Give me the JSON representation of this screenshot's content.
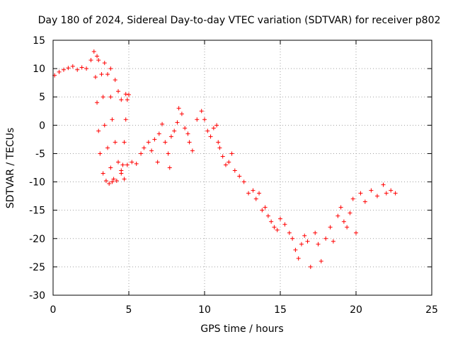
{
  "chart_data": {
    "type": "scatter",
    "title": "Day 180 of 2024, Sidereal Day-to-day VTEC variation (SDTVAR) for receiver p802",
    "xlabel": "GPS time / hours",
    "ylabel": "SDTVAR / TECUs",
    "xlim": [
      0,
      25
    ],
    "ylim": [
      -30,
      15
    ],
    "xticks": [
      0,
      5,
      10,
      15,
      20,
      25
    ],
    "yticks": [
      15,
      10,
      5,
      0,
      -5,
      -10,
      -15,
      -20,
      -25,
      -30
    ],
    "grid": true,
    "marker": "+",
    "series": [
      {
        "name": "SDTVAR",
        "color": "#ff0000",
        "points": [
          [
            0.1,
            8.8
          ],
          [
            0.4,
            9.4
          ],
          [
            0.7,
            9.8
          ],
          [
            1.0,
            10.1
          ],
          [
            1.3,
            10.4
          ],
          [
            1.6,
            9.8
          ],
          [
            1.9,
            10.2
          ],
          [
            2.2,
            10.0
          ],
          [
            2.5,
            11.5
          ],
          [
            2.7,
            13.0
          ],
          [
            2.9,
            12.2
          ],
          [
            2.8,
            8.5
          ],
          [
            2.9,
            4.0
          ],
          [
            3.0,
            -1.0
          ],
          [
            3.1,
            -5.0
          ],
          [
            3.3,
            -8.5
          ],
          [
            3.5,
            -9.8
          ],
          [
            3.7,
            -10.3
          ],
          [
            3.9,
            -10.0
          ],
          [
            3.0,
            11.5
          ],
          [
            3.2,
            9.0
          ],
          [
            3.3,
            5.0
          ],
          [
            3.4,
            0.0
          ],
          [
            3.6,
            -4.0
          ],
          [
            3.8,
            -7.5
          ],
          [
            4.0,
            -9.5
          ],
          [
            4.2,
            -9.8
          ],
          [
            3.4,
            11.0
          ],
          [
            3.6,
            9.0
          ],
          [
            3.8,
            5.0
          ],
          [
            3.9,
            1.0
          ],
          [
            4.1,
            -3.0
          ],
          [
            4.3,
            -6.5
          ],
          [
            4.5,
            -8.5
          ],
          [
            4.7,
            -9.5
          ],
          [
            3.8,
            10.0
          ],
          [
            4.1,
            8.0
          ],
          [
            4.3,
            6.0
          ],
          [
            4.5,
            4.5
          ],
          [
            4.8,
            5.5
          ],
          [
            5.0,
            5.4
          ],
          [
            4.9,
            4.5
          ],
          [
            4.8,
            1.0
          ],
          [
            4.7,
            -3.0
          ],
          [
            4.6,
            -7.0
          ],
          [
            4.5,
            -8.0
          ],
          [
            4.9,
            -7.0
          ],
          [
            5.2,
            -6.5
          ],
          [
            5.5,
            -6.8
          ],
          [
            5.8,
            -5.0
          ],
          [
            6.0,
            -4.0
          ],
          [
            6.3,
            -3.0
          ],
          [
            6.5,
            -4.5
          ],
          [
            6.7,
            -2.5
          ],
          [
            6.9,
            -6.5
          ],
          [
            7.0,
            -1.5
          ],
          [
            7.2,
            0.2
          ],
          [
            7.4,
            -3.0
          ],
          [
            7.6,
            -5.0
          ],
          [
            7.7,
            -7.5
          ],
          [
            7.8,
            -2.0
          ],
          [
            8.0,
            -1.0
          ],
          [
            8.2,
            0.5
          ],
          [
            8.3,
            3.0
          ],
          [
            8.5,
            2.0
          ],
          [
            8.7,
            -0.5
          ],
          [
            8.9,
            -1.5
          ],
          [
            9.0,
            -3.0
          ],
          [
            9.2,
            -4.5
          ],
          [
            9.5,
            1.0
          ],
          [
            9.8,
            2.5
          ],
          [
            10.0,
            1.0
          ],
          [
            10.2,
            -1.0
          ],
          [
            10.4,
            -2.0
          ],
          [
            10.6,
            -0.5
          ],
          [
            10.8,
            0.0
          ],
          [
            10.9,
            -3.0
          ],
          [
            11.0,
            -4.0
          ],
          [
            11.2,
            -5.5
          ],
          [
            11.4,
            -7.0
          ],
          [
            11.6,
            -6.5
          ],
          [
            11.8,
            -5.0
          ],
          [
            12.0,
            -8.0
          ],
          [
            12.3,
            -9.0
          ],
          [
            12.6,
            -10.0
          ],
          [
            12.9,
            -12.0
          ],
          [
            13.2,
            -11.5
          ],
          [
            13.4,
            -13.0
          ],
          [
            13.6,
            -12.0
          ],
          [
            13.8,
            -15.0
          ],
          [
            14.0,
            -14.5
          ],
          [
            14.2,
            -16.0
          ],
          [
            14.4,
            -17.0
          ],
          [
            14.6,
            -18.0
          ],
          [
            14.8,
            -18.5
          ],
          [
            15.0,
            -16.5
          ],
          [
            15.3,
            -17.5
          ],
          [
            15.6,
            -19.0
          ],
          [
            15.8,
            -20.0
          ],
          [
            16.0,
            -22.0
          ],
          [
            16.2,
            -23.5
          ],
          [
            16.4,
            -21.0
          ],
          [
            16.6,
            -19.5
          ],
          [
            16.8,
            -20.5
          ],
          [
            17.0,
            -25.0
          ],
          [
            17.3,
            -19.0
          ],
          [
            17.5,
            -21.0
          ],
          [
            17.7,
            -24.0
          ],
          [
            18.0,
            -20.0
          ],
          [
            18.3,
            -18.0
          ],
          [
            18.5,
            -20.5
          ],
          [
            18.8,
            -16.0
          ],
          [
            19.0,
            -14.5
          ],
          [
            19.2,
            -17.0
          ],
          [
            19.4,
            -18.0
          ],
          [
            19.6,
            -15.5
          ],
          [
            19.8,
            -13.0
          ],
          [
            20.0,
            -19.0
          ],
          [
            20.3,
            -12.0
          ],
          [
            20.6,
            -13.5
          ],
          [
            21.0,
            -11.5
          ],
          [
            21.4,
            -12.5
          ],
          [
            21.8,
            -10.5
          ],
          [
            22.0,
            -12.0
          ],
          [
            22.3,
            -11.5
          ],
          [
            22.6,
            -12.0
          ]
        ]
      }
    ]
  }
}
